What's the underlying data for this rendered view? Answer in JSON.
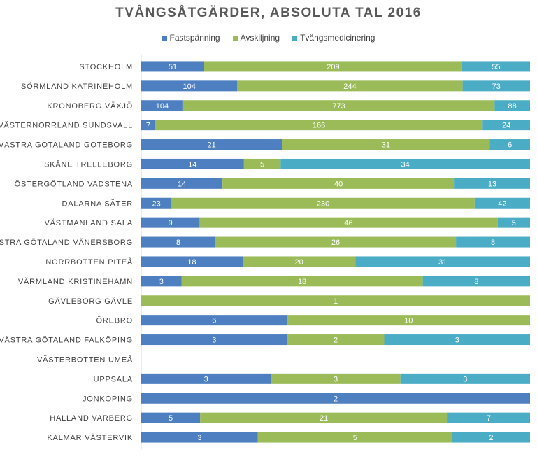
{
  "chart_data": {
    "type": "bar",
    "orientation": "horizontal",
    "stacked": "100%",
    "title": "TVÅNGSÅTGÄRDER, ABSOLUTA TAL 2016",
    "legend_position": "top",
    "grid": false,
    "categories": [
      "STOCKHOLM",
      "SÖRMLAND KATRINEHOLM",
      "KRONOBERG VÄXJÖ",
      "VÄSTERNORRLAND SUNDSVALL",
      "VÄSTRA GÖTALAND GÖTEBORG",
      "SKÅNE TRELLEBORG",
      "ÖSTERGÖTLAND VADSTENA",
      "DALARNA SÄTER",
      "VÄSTMANLAND SALA",
      "VÄSTRA GÖTALAND VÄNERSBORG",
      "NORRBOTTEN PITEÅ",
      "VÄRMLAND KRISTINEHAMN",
      "GÄVLEBORG GÄVLE",
      "ÖREBRO",
      "VÄSTRA GÖTALAND FALKÖPING",
      "VÄSTERBOTTEN UMEÅ",
      "UPPSALA",
      "JÖNKÖPING",
      "HALLAND VARBERG",
      "KALMAR VÄSTERVIK"
    ],
    "series": [
      {
        "name": "Fastspänning",
        "color": "#4e7fc0",
        "values": [
          51,
          104,
          104,
          7,
          21,
          14,
          14,
          23,
          9,
          8,
          18,
          3,
          null,
          6,
          3,
          null,
          3,
          2,
          5,
          3
        ]
      },
      {
        "name": "Avskiljning",
        "color": "#9bbb59",
        "values": [
          209,
          244,
          773,
          166,
          31,
          5,
          40,
          230,
          46,
          26,
          20,
          18,
          1,
          10,
          2,
          null,
          3,
          null,
          21,
          5
        ]
      },
      {
        "name": "Tvångsmedicinering",
        "color": "#4bacc6",
        "values": [
          55,
          73,
          88,
          24,
          6,
          34,
          13,
          42,
          5,
          8,
          31,
          8,
          null,
          null,
          3,
          null,
          3,
          null,
          7,
          2
        ]
      }
    ]
  }
}
